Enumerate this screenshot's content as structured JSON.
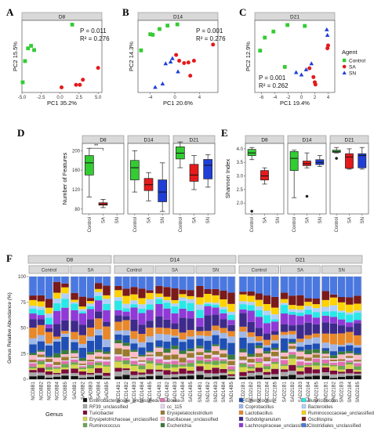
{
  "panel_letters": [
    "A",
    "B",
    "C",
    "D",
    "E",
    "F"
  ],
  "agents": [
    "Control",
    "SA",
    "SN"
  ],
  "agent_colors": {
    "Control": "#33cc33",
    "SA": "#e41a1c",
    "SN": "#1f3fd6"
  },
  "chart_data": [
    {
      "type": "scatter",
      "panel": "A",
      "title": "D8",
      "xlabel": "PC1 35.2%",
      "ylabel": "PC2 15.5%",
      "stats": {
        "p": "P = 0.011",
        "r2": "R² = 0.276"
      },
      "xlim": [
        -5,
        5.5
      ],
      "ylim": [
        -4,
        4.5
      ],
      "x_ticks": [
        "-5.0",
        "-2.5",
        "0.0",
        "2.5",
        "5.0"
      ],
      "series": [
        {
          "name": "Control",
          "points": [
            [
              -4.6,
              -0.3
            ],
            [
              -4.2,
              1.2
            ],
            [
              -3.8,
              1.5
            ],
            [
              -3.4,
              1.0
            ],
            [
              -4.9,
              -2.8
            ],
            [
              1.6,
              4.0
            ]
          ]
        },
        {
          "name": "SA",
          "points": [
            [
              0.2,
              -3.4
            ],
            [
              2.1,
              -3.1
            ],
            [
              2.6,
              -3.1
            ],
            [
              3.0,
              -2.5
            ],
            [
              5.0,
              -1.1
            ]
          ]
        },
        {
          "name": "SN",
          "points": []
        }
      ]
    },
    {
      "type": "scatter",
      "panel": "B",
      "title": "D14",
      "xlabel": "PC1 20.6%",
      "ylabel": "PC2 14.3%",
      "stats": {
        "p": "P = 0.001",
        "r2": "R² = 0.276"
      },
      "xlim": [
        -6,
        7
      ],
      "ylim": [
        -6.5,
        6
      ],
      "x_ticks": [
        "-4",
        "0",
        "4"
      ],
      "series": [
        {
          "name": "Control",
          "points": [
            [
              -5.5,
              0.8
            ],
            [
              -4.0,
              3.6
            ],
            [
              -3.6,
              3.5
            ],
            [
              -2.5,
              4.5
            ],
            [
              -1.2,
              5.1
            ],
            [
              0.4,
              5.3
            ]
          ]
        },
        {
          "name": "SA",
          "points": [
            [
              0.2,
              0.0
            ],
            [
              0.7,
              -1.0
            ],
            [
              1.5,
              -1.4
            ],
            [
              2.2,
              -1.3
            ],
            [
              3.1,
              -1.0
            ],
            [
              6.2,
              1.8
            ],
            [
              2.5,
              -3.6
            ]
          ]
        },
        {
          "name": "SN",
          "points": [
            [
              -3.2,
              -5.6
            ],
            [
              -2.0,
              -5.0
            ],
            [
              -1.5,
              -1.5
            ],
            [
              -0.7,
              -1.2
            ],
            [
              -0.4,
              -0.6
            ],
            [
              0.5,
              -2.9
            ]
          ]
        }
      ]
    },
    {
      "type": "scatter",
      "panel": "C",
      "title": "D21",
      "xlabel": "PC1 19.4%",
      "ylabel": "PC2 12.9%",
      "stats": {
        "p": "P = 0.001",
        "r2": "R² = 0.262"
      },
      "xlim": [
        -7,
        5
      ],
      "ylim": [
        -8.5,
        7
      ],
      "x_ticks": [
        "-6",
        "-4",
        "-2",
        "0",
        "2",
        "4"
      ],
      "series": [
        {
          "name": "Control",
          "points": [
            [
              -6.2,
              0.5
            ],
            [
              -5.5,
              3.3
            ],
            [
              -4.2,
              4.6
            ],
            [
              -2.1,
              6.0
            ],
            [
              -2.5,
              -3.0
            ],
            [
              0.5,
              5.8
            ]
          ]
        },
        {
          "name": "SA",
          "points": [
            [
              1.8,
              -5.2
            ],
            [
              2.0,
              -6.3
            ],
            [
              2.1,
              -6.8
            ],
            [
              1.2,
              -3.3
            ],
            [
              3.9,
              1.0
            ],
            [
              4.0,
              1.6
            ]
          ]
        },
        {
          "name": "SN",
          "points": [
            [
              -0.8,
              -4.2
            ],
            [
              0.0,
              -4.7
            ],
            [
              0.7,
              -3.6
            ],
            [
              1.5,
              -2.3
            ],
            [
              3.8,
              5.0
            ],
            [
              3.9,
              3.8
            ]
          ]
        }
      ]
    },
    {
      "type": "box",
      "panel": "D",
      "ylabel": "Number of Features",
      "y_ticks": [
        "80",
        "120",
        "160",
        "200"
      ],
      "ylim": [
        70,
        215
      ],
      "categories": [
        "Control",
        "SA",
        "SN"
      ],
      "significance": "**",
      "facets": [
        {
          "title": "D8",
          "boxes": [
            {
              "group": "Control",
              "min": 105,
              "q1": 150,
              "median": 175,
              "q3": 190,
              "max": 205,
              "outliers": []
            },
            {
              "group": "SA",
              "min": 83,
              "q1": 88,
              "median": 90,
              "q3": 93,
              "max": 100,
              "outliers": []
            },
            {
              "group": "SN",
              "outliers": []
            }
          ]
        },
        {
          "title": "D14",
          "boxes": [
            {
              "group": "Control",
              "min": 115,
              "q1": 140,
              "median": 165,
              "q3": 180,
              "max": 200,
              "outliers": []
            },
            {
              "group": "SA",
              "min": 97,
              "q1": 118,
              "median": 130,
              "q3": 143,
              "max": 155,
              "outliers": []
            },
            {
              "group": "SN",
              "min": 75,
              "q1": 95,
              "median": 115,
              "q3": 140,
              "max": 175,
              "outliers": []
            }
          ]
        },
        {
          "title": "D21",
          "boxes": [
            {
              "group": "Control",
              "min": 165,
              "q1": 183,
              "median": 195,
              "q3": 208,
              "max": 218,
              "outliers": []
            },
            {
              "group": "SA",
              "min": 120,
              "q1": 137,
              "median": 150,
              "q3": 172,
              "max": 190,
              "outliers": []
            },
            {
              "group": "SN",
              "min": 125,
              "q1": 142,
              "median": 170,
              "q3": 182,
              "max": 192,
              "outliers": []
            }
          ]
        }
      ]
    },
    {
      "type": "box",
      "panel": "E",
      "ylabel": "Shannon Index",
      "y_ticks": [
        "2.0",
        "2.5",
        "3.0",
        "3.5",
        "4.0"
      ],
      "ylim": [
        1.6,
        4.2
      ],
      "categories": [
        "Control",
        "SA",
        "SN"
      ],
      "facets": [
        {
          "title": "D8",
          "boxes": [
            {
              "group": "Control",
              "min": 3.6,
              "q1": 3.75,
              "median": 3.85,
              "q3": 3.98,
              "max": 4.05,
              "outliers": [
                1.7
              ]
            },
            {
              "group": "SA",
              "min": 2.7,
              "q1": 2.85,
              "median": 3.0,
              "q3": 3.2,
              "max": 3.3,
              "outliers": []
            },
            {
              "group": "SN",
              "outliers": []
            }
          ]
        },
        {
          "title": "D14",
          "boxes": [
            {
              "group": "Control",
              "min": 2.2,
              "q1": 3.2,
              "median": 3.65,
              "q3": 3.9,
              "max": 3.95,
              "outliers": []
            },
            {
              "group": "SA",
              "min": 3.3,
              "q1": 3.38,
              "median": 3.45,
              "q3": 3.55,
              "max": 3.85,
              "outliers": [
                2.25
              ]
            },
            {
              "group": "SN",
              "min": 3.35,
              "q1": 3.42,
              "median": 3.5,
              "q3": 3.6,
              "max": 3.75,
              "outliers": []
            }
          ]
        },
        {
          "title": "D21",
          "boxes": [
            {
              "group": "Control",
              "min": 3.85,
              "q1": 3.87,
              "median": 3.9,
              "q3": 3.95,
              "max": 4.05,
              "outliers": [
                3.65
              ]
            },
            {
              "group": "SA",
              "min": 3.25,
              "q1": 3.28,
              "median": 3.7,
              "q3": 3.82,
              "max": 4.0,
              "outliers": []
            },
            {
              "group": "SN",
              "min": 3.25,
              "q1": 3.3,
              "median": 3.75,
              "q3": 3.82,
              "max": 4.05,
              "outliers": []
            }
          ]
        }
      ]
    },
    {
      "type": "bar",
      "stacked": true,
      "panel": "F",
      "ylabel": "Genus Relative Abundance (%)",
      "y_ticks": [
        "0",
        "25",
        "50",
        "75",
        "100"
      ],
      "ylim": [
        0,
        100
      ],
      "facets": [
        {
          "title": "D8",
          "groups": [
            {
              "name": "Control",
              "samples": [
                "NCD8B1",
                "NCD8B2",
                "NCD8B3",
                "NCD8B4",
                "NCD8B5"
              ]
            },
            {
              "name": "SA",
              "samples": [
                "SAD8B1",
                "SAD8B2",
                "SAD8B3",
                "SAD8B4",
                "SAD8B5"
              ]
            }
          ]
        },
        {
          "title": "D14",
          "groups": [
            {
              "name": "Control",
              "samples": [
                "NCD14B1",
                "NCD14B2",
                "NCD14B3",
                "NCD14B4",
                "NCD14B5"
              ]
            },
            {
              "name": "SA",
              "samples": [
                "SAD14B1",
                "SAD14B2",
                "SAD14B3",
                "SAD14B4",
                "SAD14B5"
              ]
            },
            {
              "name": "SN",
              "samples": [
                "SND14B1",
                "SND14B2",
                "SND14B3",
                "SND14B4",
                "SND14B5"
              ]
            }
          ]
        },
        {
          "title": "D21",
          "groups": [
            {
              "name": "Control",
              "samples": [
                "NCD21B1",
                "NCD21B2",
                "NCD21B3",
                "NCD21B4",
                "NCD21B5"
              ]
            },
            {
              "name": "SA",
              "samples": [
                "SAD21B1",
                "SAD21B2",
                "SAD21B3",
                "SAD21B4",
                "SAD21B5"
              ]
            },
            {
              "name": "SN",
              "samples": [
                "SND21B1",
                "SND21B2",
                "SND21B3",
                "SND21B4",
                "SND21B5"
              ]
            }
          ]
        }
      ],
      "legend_title": "Genus",
      "genera": [
        {
          "name": "Enterobacteriaceae_unclassified",
          "color": "#111111"
        },
        {
          "name": "RF39_unclassified",
          "color": "#a9a9a9"
        },
        {
          "name": "Turicibacter",
          "color": "#7a0a3a"
        },
        {
          "name": "Erysipelotrichaceae_unclassified",
          "color": "#d5d84a"
        },
        {
          "name": "Ruminococcus",
          "color": "#6aa84f"
        },
        {
          "name": "Dorea",
          "color": "#e06fb0"
        },
        {
          "name": "cc_115",
          "color": "#ead8f2"
        },
        {
          "name": "Erysipelatoclostridium",
          "color": "#9a7a2f"
        },
        {
          "name": "Bacillaceae_unclassified",
          "color": "#ffbcc7"
        },
        {
          "name": "Escherichia",
          "color": "#3a7a3a"
        },
        {
          "name": "Enterococcus",
          "color": "#1f4fb4"
        },
        {
          "name": "Coprobacillus",
          "color": "#9fb7e8"
        },
        {
          "name": "Lactobacillus",
          "color": "#e8882a"
        },
        {
          "name": "Subdoligranulum",
          "color": "#3d2a8a"
        },
        {
          "name": "Lachnospiraceae_unclassified",
          "color": "#8f3ad6"
        },
        {
          "name": "Butyricicoccus",
          "color": "#29e8e8"
        },
        {
          "name": "Bacteroides",
          "color": "#b0d0ff"
        },
        {
          "name": "Ruminococcaceae_unclassified",
          "color": "#ffd200"
        },
        {
          "name": "Oscillospira",
          "color": "#7a1a1a"
        },
        {
          "name": "Clostridiales_unclassified",
          "color": "#4a78e0"
        }
      ]
    }
  ]
}
